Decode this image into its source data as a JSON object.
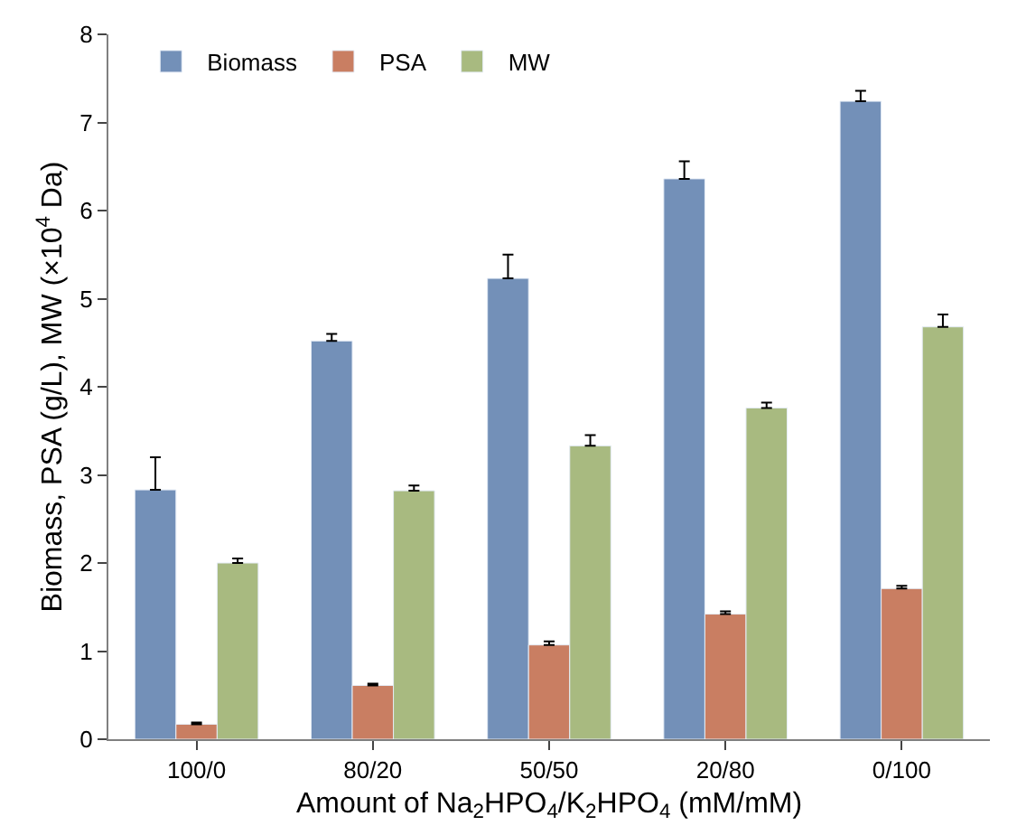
{
  "chart_data": {
    "type": "bar",
    "xlabel": "Amount of Na$_{2}$HPO$_{4}$/K$_{2}$HPO$_{4}$ (mM/mM)",
    "ylabel": "Biomass, PSA (g/L), MW (×10$^{4}$ Da)",
    "categories": [
      "100/0",
      "80/20",
      "50/50",
      "20/80",
      "0/100"
    ],
    "series": [
      {
        "name": "Biomass",
        "color": "#7390b8",
        "values": [
          2.83,
          4.52,
          5.23,
          6.36,
          7.24
        ],
        "errors": [
          [
            2.83,
            3.2
          ],
          [
            4.52,
            4.6
          ],
          [
            5.23,
            5.5
          ],
          [
            6.36,
            6.56
          ],
          [
            7.24,
            7.36
          ]
        ]
      },
      {
        "name": "PSA",
        "color": "#c97e62",
        "values": [
          0.17,
          0.61,
          1.07,
          1.42,
          1.71
        ],
        "errors": [
          [
            0.17,
            0.19
          ],
          [
            0.61,
            0.63
          ],
          [
            1.07,
            1.11
          ],
          [
            1.42,
            1.45
          ],
          [
            1.71,
            1.74
          ]
        ]
      },
      {
        "name": "MW",
        "color": "#a8ba80",
        "values": [
          2.0,
          2.82,
          3.33,
          3.76,
          4.68
        ],
        "errors": [
          [
            2.0,
            2.05
          ],
          [
            2.82,
            2.88
          ],
          [
            3.33,
            3.45
          ],
          [
            3.76,
            3.82
          ],
          [
            4.68,
            4.82
          ]
        ]
      }
    ],
    "ylim": [
      0,
      8
    ],
    "yticks": [
      0,
      1,
      2,
      3,
      4,
      5,
      6,
      7,
      8
    ],
    "grid": false,
    "legend": "top left"
  }
}
